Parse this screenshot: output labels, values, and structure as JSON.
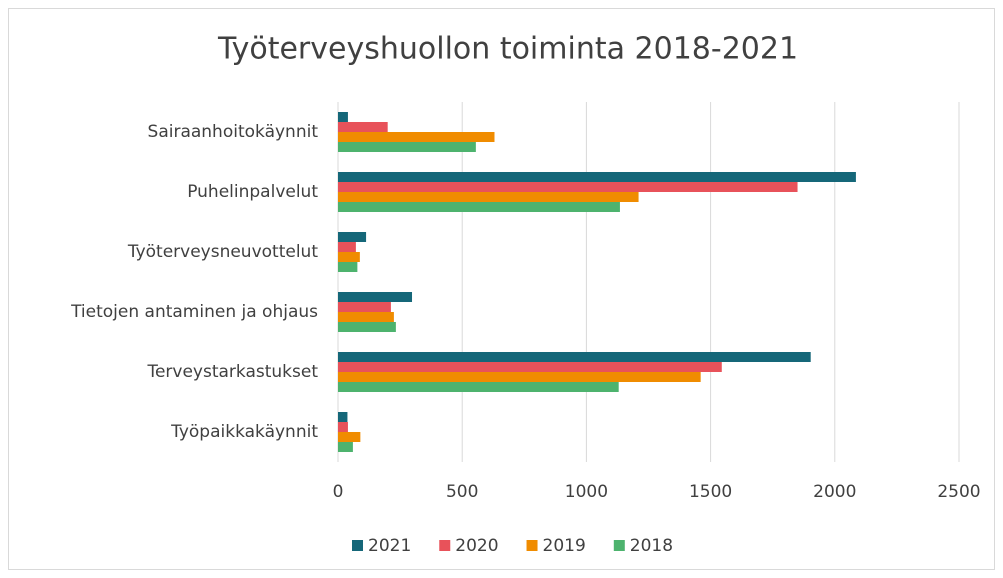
{
  "chart_data": {
    "type": "hbar",
    "title": "Työterveyshuollon toiminta 2018-2021",
    "categories": [
      "Sairaanhoitokäynnit",
      "Puhelinpalvelut",
      "Työterveysneuvottelut",
      "Tietojen antaminen ja ohjaus",
      "Terveystarkastukset",
      "Työpaikkakäynnit"
    ],
    "series": [
      {
        "name": "2021",
        "color": "#156779",
        "values": [
          40,
          2085,
          113,
          298,
          1903,
          38
        ]
      },
      {
        "name": "2020",
        "color": "#e8525a",
        "values": [
          200,
          1850,
          72,
          213,
          1545,
          40
        ]
      },
      {
        "name": "2019",
        "color": "#f08c00",
        "values": [
          630,
          1210,
          88,
          225,
          1460,
          90
        ]
      },
      {
        "name": "2018",
        "color": "#4db36e",
        "values": [
          555,
          1135,
          78,
          233,
          1130,
          60
        ]
      }
    ],
    "xlim": [
      0,
      2500
    ],
    "xticks": [
      0,
      500,
      1000,
      1500,
      2000,
      2500
    ],
    "grid": true,
    "legend": "bottom"
  }
}
